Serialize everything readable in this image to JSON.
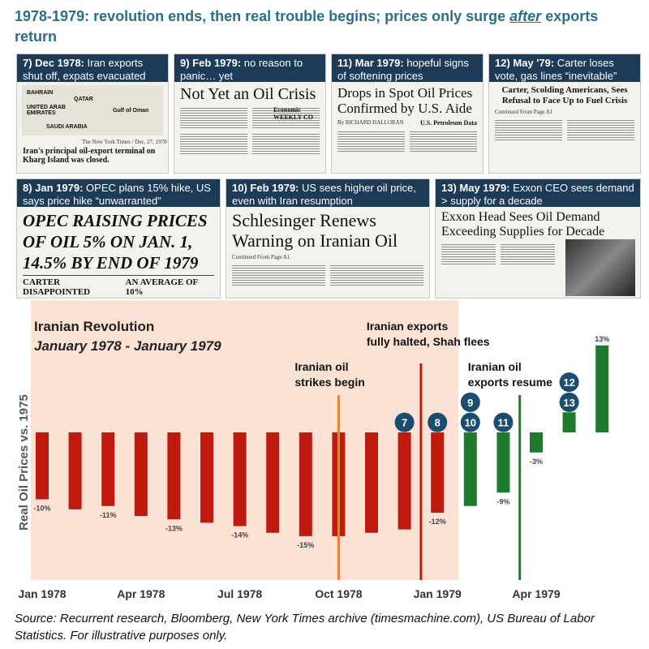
{
  "headline": {
    "part1": "1978-1979: revolution ends, then real trouble begins; prices only surge ",
    "emph": "after",
    "part2": " exports return"
  },
  "cards": [
    {
      "num": "7) Dec 1978:",
      "text": " Iran exports shut off, expats evacuated",
      "map_labels": [
        "BAHRAIN",
        "QATAR",
        "UNITED ARAB EMIRATES",
        "SAUDI ARABIA",
        "Gulf of Oman"
      ],
      "credit": "The New York Times / Dec. 27, 1978",
      "headline": "Iran's principal oil-export terminal on Kharg Island was closed."
    },
    {
      "num": "9) Feb 1979:",
      "text": " no reason to panic… yet",
      "headline": "Not Yet an Oil Crisis",
      "sidebar": "Economic WEEKLY CO"
    },
    {
      "num": "11) Mar 1979:",
      "text": " hopeful signs of softening prices",
      "headline": "Drops in Spot Oil Prices Confirmed by U.S. Aide",
      "byline": "By RICHARD HALLORAN",
      "table_title": "U.S. Petroleum Data"
    },
    {
      "num": "12) May '79:",
      "text": " Carter loses vote, gas lines “inevitable”",
      "headline": "Carter, Scolding Americans, Sees Refusal to Face Up to Fuel Crisis",
      "byline": "Continued From Page A1"
    },
    {
      "num": "8) Jan 1979:",
      "text": " OPEC plans 15% hike, US says price hike “unwarranted”",
      "headline": "OPEC RAISING PRICES OF OIL 5% ON JAN. 1, 14.5% BY END OF 1979",
      "sub1": "CARTER DISAPPOINTED",
      "sub2": "AN AVERAGE OF 10%"
    },
    {
      "num": "10) Feb 1979:",
      "text": " US sees higher oil price, even with Iran resumption",
      "headline": "Schlesinger Renews Warning on Iranian Oil",
      "byline": "Continued From Page A1"
    },
    {
      "num": "13) May 1979:",
      "text": " Exxon CEO sees demand > supply for a decade",
      "headline": "Exxon Head Sees Oil Demand Exceeding Supplies for Decade"
    }
  ],
  "chart_data": {
    "type": "bar",
    "title": "Iranian Revolution",
    "subtitle": "January 1978 - January 1979",
    "ylabel": "Real Oil Prices vs. 1975",
    "ylim": [
      -20,
      15
    ],
    "x_tick_labels": [
      "Jan 1978",
      "Apr 1978",
      "Jul 1978",
      "Oct 1978",
      "Jan 1979",
      "Apr 1979"
    ],
    "x_tick_indices": [
      0,
      3,
      6,
      9,
      12,
      15
    ],
    "categories": [
      "Jan 1978",
      "Feb 1978",
      "Mar 1978",
      "Apr 1978",
      "May 1978",
      "Jun 1978",
      "Jul 1978",
      "Aug 1978",
      "Sep 1978",
      "Oct 1978",
      "Nov 1978",
      "Dec 1978",
      "Jan 1979",
      "Feb 1979",
      "Mar 1979",
      "Apr 1979",
      "May 1979",
      "Jun 1979"
    ],
    "values": [
      -10,
      -11.5,
      -11,
      -12.5,
      -13,
      -13.5,
      -14,
      -15,
      -15.5,
      -15.5,
      -15,
      -14.5,
      -12,
      -11,
      -9,
      -3,
      3,
      13
    ],
    "data_labels": {
      "0": "-10%",
      "2": "-11%",
      "4": "-13%",
      "6": "-14%",
      "8": "-15%",
      "12": "-12%",
      "14": "-9%",
      "15": "-3%",
      "17": "13%"
    },
    "colors": {
      "revolution": "#c0190e",
      "post": "#1f7a2c",
      "shade": "#fbe2d4",
      "strikes_line": "#e8823a",
      "halt_line": "#c0190e",
      "resume_line": "#1f7a2c",
      "marker": "#1d4d6e"
    },
    "shaded_range": {
      "from": 0,
      "to": 12
    },
    "events": [
      {
        "index": 9,
        "color_key": "strikes_line",
        "label_lines": [
          "Iranian oil",
          "strikes begin"
        ]
      },
      {
        "index": 11.5,
        "color_key": "halt_line",
        "label_lines": [
          "Iranian exports",
          "fully halted, Shah flees"
        ]
      },
      {
        "index": 14.5,
        "color_key": "resume_line",
        "label_lines": [
          "Iranian oil",
          "exports resume"
        ]
      }
    ],
    "markers": [
      {
        "label": "7",
        "index": 11,
        "y": 1.5
      },
      {
        "label": "8",
        "index": 12,
        "y": 1.5
      },
      {
        "label": "9",
        "index": 13,
        "y": 4.5
      },
      {
        "label": "10",
        "index": 13,
        "y": 1.5
      },
      {
        "label": "11",
        "index": 14,
        "y": 1.5
      },
      {
        "label": "12",
        "index": 16,
        "y": 7.5
      },
      {
        "label": "13",
        "index": 16,
        "y": 4.5
      }
    ]
  },
  "source": "Source: Recurrent research, Bloomberg, New York Times archive (timesmachine.com), US Bureau of Labor Statistics. For illustrative purposes only."
}
